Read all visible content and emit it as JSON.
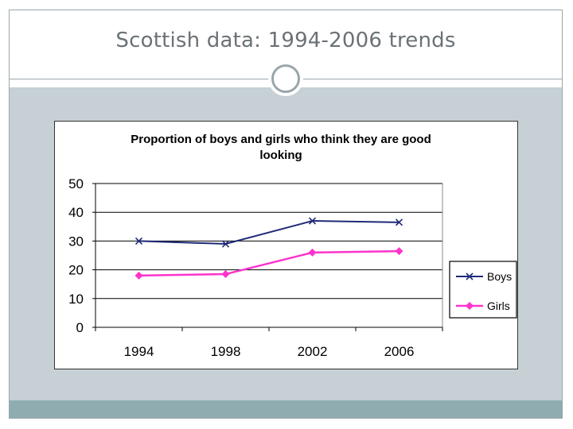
{
  "slide": {
    "title": "Scottish data: 1994-2006 trends"
  },
  "chart_data": {
    "type": "line",
    "title_lines": [
      "Proportion of boys and girls who think they are good",
      "looking"
    ],
    "categories": [
      "1994",
      "1998",
      "2002",
      "2006"
    ],
    "series": [
      {
        "name": "Boys",
        "values": [
          30,
          29,
          37,
          36.5
        ],
        "color": "#1f2a78",
        "marker": "x"
      },
      {
        "name": "Girls",
        "values": [
          18,
          18.5,
          26,
          26.5
        ],
        "color": "#ff33cc",
        "marker": "diamond"
      }
    ],
    "ylim": [
      0,
      50
    ],
    "yticks": [
      "0",
      "10",
      "20",
      "30",
      "40",
      "50"
    ],
    "xlabel": "",
    "ylabel": "",
    "grid": true,
    "legend_position": "right"
  }
}
